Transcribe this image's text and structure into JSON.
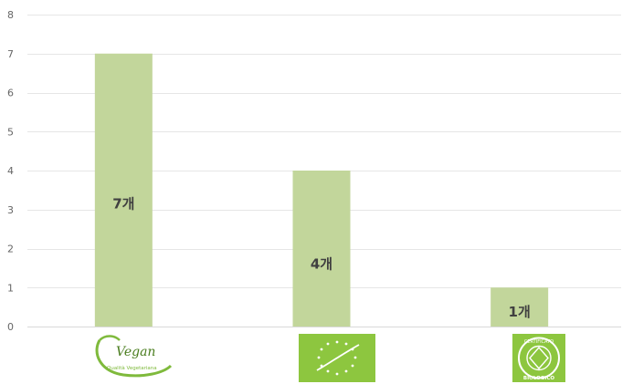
{
  "chart_data": {
    "type": "bar",
    "title": "",
    "xlabel": "",
    "ylabel": "",
    "ylim": [
      0,
      8
    ],
    "yticks": [
      0,
      1,
      2,
      3,
      4,
      5,
      6,
      7,
      8
    ],
    "grid": true,
    "legend": "none",
    "categories": [
      "Vegan",
      "EU Organic",
      "Biologico"
    ],
    "category_logos": [
      "vegan-logo",
      "eu-organic-leaf-logo",
      "certified-biologico-logo"
    ],
    "values": [
      7,
      4,
      1
    ],
    "data_labels": [
      "7개",
      "4개",
      "1개"
    ],
    "bar_color": "#c2d69b",
    "logo_green": "#8dc63f"
  },
  "logos": {
    "vegan": {
      "word": "Vegan",
      "tagline": "Qualità Vegetariana"
    },
    "biologico": {
      "top_text": "CERTIFICATO",
      "bottom_text": "BIOLOGICO"
    }
  }
}
